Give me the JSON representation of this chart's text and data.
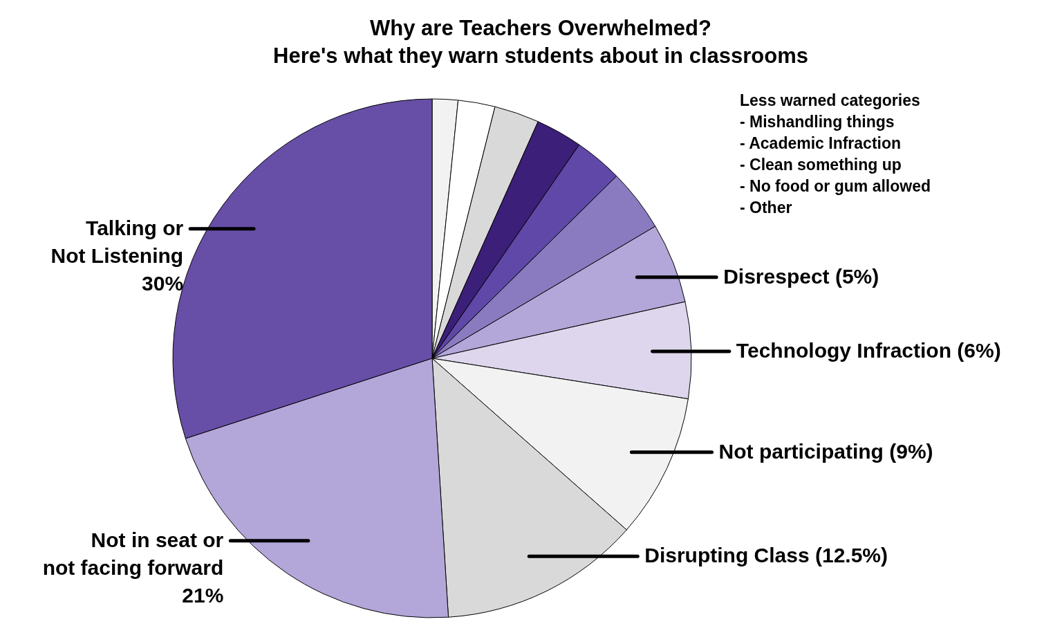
{
  "chart_data": {
    "type": "pie",
    "title": "Why are Teachers Overwhelmed?",
    "subtitle": "Here's what they warn students about in classrooms",
    "categories": [
      null,
      null,
      null,
      null,
      null,
      null,
      "Disrespect (5%)",
      "Technology Infraction (6%)",
      "Not participating (9%)",
      "Disrupting Class (12.5%)",
      "Not in seat or\nnot facing forward\n21%",
      "Talking or\nNot Listening\n30%"
    ],
    "values": [
      1.6,
      2.3,
      2.8,
      2.9,
      3.0,
      3.9,
      5,
      6,
      9,
      12.5,
      21,
      30
    ],
    "colors": [
      "#f2f2f2",
      "#ffffff",
      "#d9d9d9",
      "#3b1f78",
      "#5f48a8",
      "#8a7bc0",
      "#b3a6d9",
      "#ddd6ec",
      "#f2f2f2",
      "#d9d9d9",
      "#b3a6d9",
      "#674ea7"
    ],
    "annotations": [
      "Less warned categories",
      "- Mishandling things",
      "- Academic Infraction",
      "- Clean something up",
      "- No food or gum allowed",
      "- Other"
    ]
  }
}
